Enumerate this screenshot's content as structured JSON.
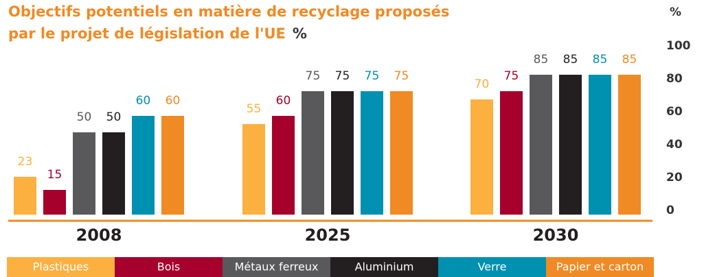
{
  "chart_data": {
    "type": "bar",
    "title": [
      "Objectifs potentiels en matière de recyclage proposés",
      "par le projet de législation de l'UE"
    ],
    "title_unit": "%",
    "ylabel": "%",
    "categories": [
      "2008",
      "2025",
      "2030"
    ],
    "series": [
      {
        "name": "Plastiques",
        "color": "#fbb040",
        "values": [
          23,
          55,
          70
        ]
      },
      {
        "name": "Bois",
        "color": "#a6002c",
        "values": [
          15,
          60,
          75
        ]
      },
      {
        "name": "Métaux ferreux",
        "color": "#59595b",
        "values": [
          50,
          75,
          85
        ]
      },
      {
        "name": "Aluminium",
        "color": "#231f20",
        "values": [
          50,
          75,
          85
        ]
      },
      {
        "name": "Verre",
        "color": "#0090b0",
        "values": [
          60,
          75,
          85
        ]
      },
      {
        "name": "Papier et carton",
        "color": "#f08a24",
        "values": [
          60,
          75,
          85
        ]
      }
    ],
    "ylim": [
      0,
      100
    ],
    "yticks": [
      0,
      20,
      40,
      60,
      80,
      100
    ],
    "grid": false,
    "legend": "bottom"
  }
}
